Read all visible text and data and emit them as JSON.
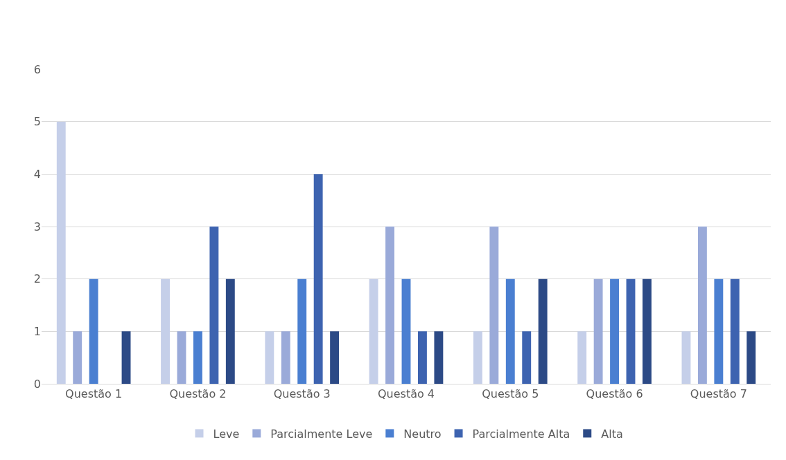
{
  "chart_data": {
    "type": "bar",
    "categories": [
      "Questão 1",
      "Questão 2",
      "Questão 3",
      "Questão 4",
      "Questão 5",
      "Questão 6",
      "Questão 7"
    ],
    "series": [
      {
        "name": "Leve",
        "color": "#c5cfe9",
        "values": [
          5,
          2,
          1,
          2,
          1,
          1,
          1
        ]
      },
      {
        "name": "Parcialmente Leve",
        "color": "#9aaad9",
        "values": [
          1,
          1,
          1,
          3,
          3,
          2,
          3
        ]
      },
      {
        "name": "Neutro",
        "color": "#4a7fd1",
        "values": [
          2,
          1,
          2,
          2,
          2,
          2,
          2
        ]
      },
      {
        "name": "Parcialmente Alta",
        "color": "#3d63b0",
        "values": [
          0,
          3,
          4,
          1,
          1,
          2,
          2
        ]
      },
      {
        "name": "Alta",
        "color": "#2c4a86",
        "values": [
          1,
          2,
          1,
          1,
          2,
          2,
          1
        ]
      }
    ],
    "ylim": [
      0,
      6
    ],
    "yticks": [
      0,
      1,
      2,
      3,
      4,
      5,
      6
    ],
    "grid": "y",
    "legend": "bottom"
  }
}
